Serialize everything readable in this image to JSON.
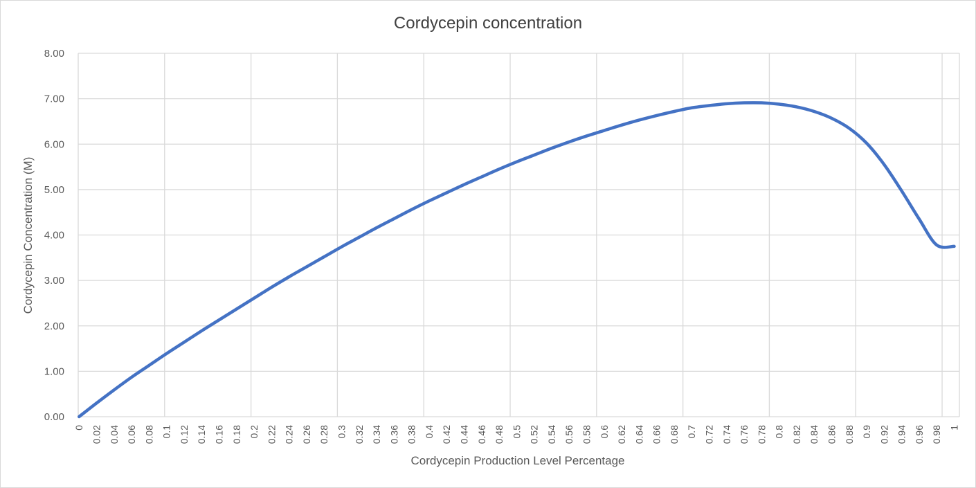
{
  "chart_data": {
    "type": "line",
    "title": "Cordycepin concentration",
    "xlabel": "Cordycepin Production Level Percentage",
    "ylabel": "Cordycepin Concentration (M)",
    "ylim": [
      0,
      8
    ],
    "xlim": [
      0,
      1
    ],
    "grid": true,
    "legend": "none",
    "y_ticks": [
      "0.00",
      "1.00",
      "2.00",
      "3.00",
      "4.00",
      "5.00",
      "6.00",
      "7.00",
      "8.00"
    ],
    "x_ticks": [
      "0",
      "0.02",
      "0.04",
      "0.06",
      "0.08",
      "0.1",
      "0.12",
      "0.14",
      "0.16",
      "0.18",
      "0.2",
      "0.22",
      "0.24",
      "0.26",
      "0.28",
      "0.3",
      "0.32",
      "0.34",
      "0.36",
      "0.38",
      "0.4",
      "0.42",
      "0.44",
      "0.46",
      "0.48",
      "0.5",
      "0.52",
      "0.54",
      "0.56",
      "0.58",
      "0.6",
      "0.62",
      "0.64",
      "0.66",
      "0.68",
      "0.7",
      "0.72",
      "0.74",
      "0.76",
      "0.78",
      "0.8",
      "0.82",
      "0.84",
      "0.86",
      "0.88",
      "0.9",
      "0.92",
      "0.94",
      "0.96",
      "0.98",
      "1"
    ],
    "series_color": "#4472c4",
    "series": [
      {
        "x": [
          0,
          0.02,
          0.04,
          0.06,
          0.08,
          0.1,
          0.12,
          0.14,
          0.16,
          0.18,
          0.2,
          0.22,
          0.24,
          0.26,
          0.28,
          0.3,
          0.32,
          0.34,
          0.36,
          0.38,
          0.4,
          0.42,
          0.44,
          0.46,
          0.48,
          0.5,
          0.52,
          0.54,
          0.56,
          0.58,
          0.6,
          0.62,
          0.64,
          0.66,
          0.68,
          0.7,
          0.72,
          0.74,
          0.76,
          0.78,
          0.8,
          0.82,
          0.84,
          0.86,
          0.88,
          0.9,
          0.92,
          0.94,
          0.96,
          0.98,
          1
        ],
        "values": [
          0.0,
          0.3,
          0.59,
          0.87,
          1.13,
          1.39,
          1.64,
          1.89,
          2.13,
          2.37,
          2.61,
          2.85,
          3.08,
          3.3,
          3.52,
          3.74,
          3.95,
          4.16,
          4.36,
          4.56,
          4.75,
          4.93,
          5.11,
          5.28,
          5.45,
          5.61,
          5.76,
          5.91,
          6.05,
          6.18,
          6.3,
          6.42,
          6.53,
          6.63,
          6.72,
          6.8,
          6.85,
          6.89,
          6.91,
          6.91,
          6.88,
          6.82,
          6.72,
          6.57,
          6.35,
          6.02,
          5.55,
          4.97,
          4.35,
          3.78,
          3.75
        ]
      }
    ]
  }
}
